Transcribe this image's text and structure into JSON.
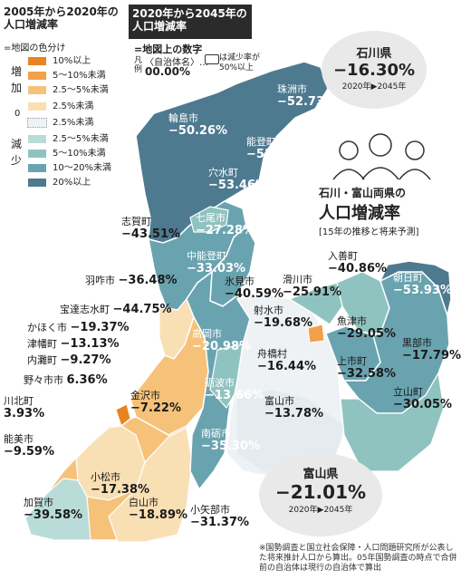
{
  "legend_color": {
    "title": "2005年から2020年の人口増減率",
    "subtitle": "=地図の色分け",
    "increase_label": "増\n加",
    "decrease_label": "減\n少",
    "zero_label": "0",
    "items": [
      {
        "label": "10%以上",
        "color": "#e9821f"
      },
      {
        "label": "5～10%未満",
        "color": "#f0a14a"
      },
      {
        "label": "2.5～5%未満",
        "color": "#f6c27a"
      },
      {
        "label": "2.5%未満",
        "color": "#f9dfb4"
      },
      {
        "label": "2.5%未満",
        "color": "#eef2f4"
      },
      {
        "label": "2.5～5%未満",
        "color": "#b9dcd8"
      },
      {
        "label": "5～10%未満",
        "color": "#8fc3c0"
      },
      {
        "label": "10～20%未満",
        "color": "#6aa3b0"
      },
      {
        "label": "20%以上",
        "color": "#4e7a90"
      }
    ]
  },
  "legend_number": {
    "title": "2020年から2045年の人口増減率",
    "subtitle": "=地図上の数字",
    "example_prefix": "凡例",
    "example_name": "〈自治体名〉…",
    "example_value": "00.00%",
    "example_box_note": "は減少率が50%以上"
  },
  "ishikawa": {
    "name": "石川県",
    "value": "−16.30%",
    "period": "2020年▶2045年"
  },
  "toyama": {
    "name": "富山県",
    "value": "−21.01%",
    "period": "2020年▶2045年"
  },
  "headline": {
    "line1": "石川・富山両県の",
    "line2": "人口増減率",
    "line3": "[15年の推移と将来予測]"
  },
  "footnote": "※国勢調査と国立社会保障・人口問題研究所が公表した将来推計人口から算出。05年国勢調査の時点で合併前の自治体は現行の自治体で算出",
  "municipalities": [
    {
      "name": "珠洲市",
      "value": "−52.73%"
    },
    {
      "name": "輪島市",
      "value": "−50.26%"
    },
    {
      "name": "能登町",
      "value": "−53.73%"
    },
    {
      "name": "穴水町",
      "value": "−53.46%"
    },
    {
      "name": "七尾市",
      "value": "−27.28%"
    },
    {
      "name": "志賀町",
      "value": "−43.51%"
    },
    {
      "name": "中能登町",
      "value": "−33.03%"
    },
    {
      "name": "羽咋市",
      "value": "−36.48%"
    },
    {
      "name": "氷見市",
      "value": "−40.59%"
    },
    {
      "name": "宝達志水町",
      "value": "−44.75%"
    },
    {
      "name": "かほく市",
      "value": "−19.37%"
    },
    {
      "name": "津幡町",
      "value": "−13.13%"
    },
    {
      "name": "内灘町",
      "value": "−9.27%"
    },
    {
      "name": "野々市市",
      "value": "6.36%"
    },
    {
      "name": "川北町",
      "value": "3.93%"
    },
    {
      "name": "能美市",
      "value": "−9.59%"
    },
    {
      "name": "金沢市",
      "value": "−7.22%"
    },
    {
      "name": "小松市",
      "value": "−17.38%"
    },
    {
      "name": "加賀市",
      "value": "−39.58%"
    },
    {
      "name": "白山市",
      "value": "−18.89%"
    },
    {
      "name": "小矢部市",
      "value": "−31.37%"
    },
    {
      "name": "南砺市",
      "value": "−35.30%"
    },
    {
      "name": "砺波市",
      "value": "−13.66%"
    },
    {
      "name": "高岡市",
      "value": "−20.98%"
    },
    {
      "name": "射水市",
      "value": "−19.68%"
    },
    {
      "name": "富山市",
      "value": "−13.78%"
    },
    {
      "name": "舟橋村",
      "value": "−16.44%"
    },
    {
      "name": "滑川市",
      "value": "−25.91%"
    },
    {
      "name": "上市町",
      "value": "−32.58%"
    },
    {
      "name": "魚津市",
      "value": "−29.05%"
    },
    {
      "name": "立山町",
      "value": "−30.05%"
    },
    {
      "name": "黒部市",
      "value": "−17.79%"
    },
    {
      "name": "入善町",
      "value": "−40.86%"
    },
    {
      "name": "朝日町",
      "value": "−53.93%"
    }
  ]
}
